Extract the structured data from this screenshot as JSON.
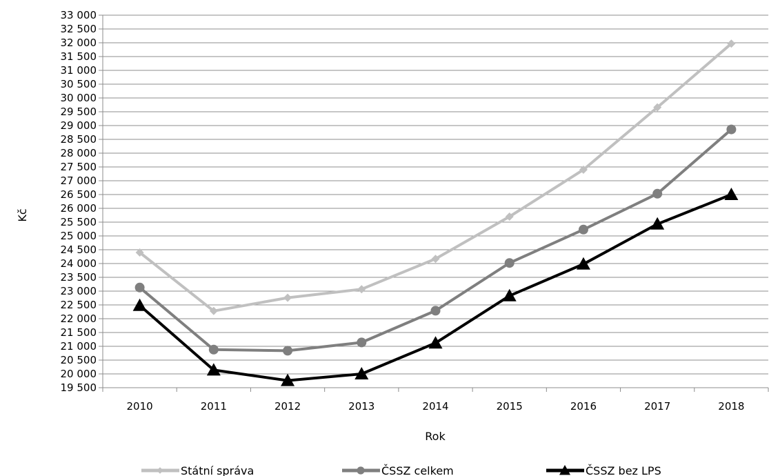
{
  "chart_data": {
    "type": "line",
    "title": "",
    "xlabel": "Rok",
    "ylabel": "Kč",
    "categories": [
      "2010",
      "2011",
      "2012",
      "2013",
      "2014",
      "2015",
      "2016",
      "2017",
      "2018"
    ],
    "ylim": [
      19500,
      33000
    ],
    "ytick_step": 500,
    "ytick_labels": [
      "19 500",
      "20 000",
      "20 500",
      "21 000",
      "21 500",
      "22 000",
      "22 500",
      "23 000",
      "23 500",
      "24 000",
      "24 500",
      "25 000",
      "25 500",
      "26 000",
      "26 500",
      "27 000",
      "27 500",
      "28 000",
      "28 500",
      "29 000",
      "29 500",
      "30 000",
      "30 500",
      "31 000",
      "31 500",
      "32 000",
      "32 500",
      "33 000"
    ],
    "grid": true,
    "legend_position": "bottom",
    "series": [
      {
        "name": "Státní správa",
        "color": "#c0c0c0",
        "marker": "diamond",
        "values": [
          24400,
          22280,
          22760,
          23070,
          24170,
          25700,
          27400,
          29660,
          31970
        ]
      },
      {
        "name": "ČSSZ celkem",
        "color": "#7f7f7f",
        "marker": "circle",
        "values": [
          23130,
          20880,
          20840,
          21140,
          22290,
          24020,
          25230,
          26530,
          28860
        ]
      },
      {
        "name": "ČSSZ bez LPS",
        "color": "#000000",
        "marker": "triangle",
        "values": [
          22480,
          20140,
          19760,
          20000,
          21120,
          22830,
          23980,
          25430,
          26500
        ]
      }
    ]
  }
}
